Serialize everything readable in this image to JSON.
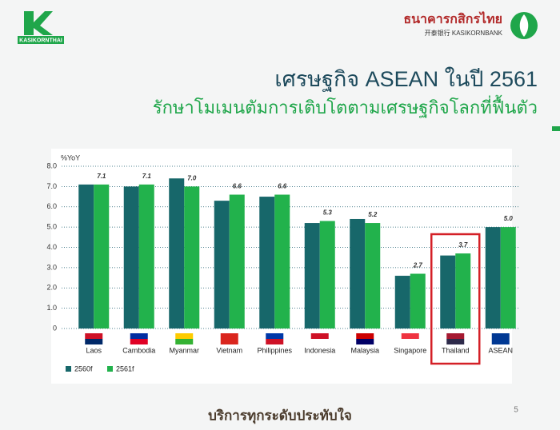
{
  "header": {
    "logo_left_text": "KASIKORNTHAI",
    "bank_name_th": "ธนาคารกสิกรไทย",
    "bank_name_en": "开泰银行 KASIKORNBANK"
  },
  "title": "เศรษฐกิจ ASEAN ในปี 2561",
  "subtitle": "รักษาโมเมนตัมการเติบโตตามเศรษฐกิจโลกที่ฟื้นตัว",
  "chart_data": {
    "type": "bar",
    "y_label": "%YoY",
    "categories": [
      "Laos",
      "Cambodia",
      "Myanmar",
      "Vietnam",
      "Philippines",
      "Indonesia",
      "Malaysia",
      "Singapore",
      "Thailand",
      "ASEAN"
    ],
    "series": [
      {
        "name": "2560f",
        "color": "#17676a",
        "values": [
          7.1,
          7.0,
          7.4,
          6.3,
          6.5,
          5.2,
          5.4,
          2.6,
          3.6,
          5.0
        ]
      },
      {
        "name": "2561f",
        "color": "#22b24c",
        "values": [
          7.1,
          7.1,
          7.0,
          6.6,
          6.6,
          5.3,
          5.2,
          2.7,
          3.7,
          5.0
        ],
        "value_labels": [
          "7.1",
          "7.1",
          "7.0",
          "6.6",
          "6.6",
          "5.3",
          "5.2",
          "2.7",
          "3.7",
          "5.0"
        ]
      }
    ],
    "ylim": [
      0,
      8
    ],
    "yticks": [
      0,
      {
        "value": 1,
        "label": "1.0"
      },
      {
        "value": 2,
        "label": "2.0"
      },
      {
        "value": 3,
        "label": "3.0"
      },
      {
        "value": 4,
        "label": "4.0"
      },
      {
        "value": 5,
        "label": "5.0"
      },
      {
        "value": 6,
        "label": "6.0"
      },
      {
        "value": 7,
        "label": "7.0"
      },
      {
        "value": 8,
        "label": "8.0"
      }
    ],
    "grid": true,
    "legend": "bottom-left",
    "highlight": "Thailand"
  },
  "footer": "บริการทุกระดับประทับใจ",
  "page_number": "5"
}
